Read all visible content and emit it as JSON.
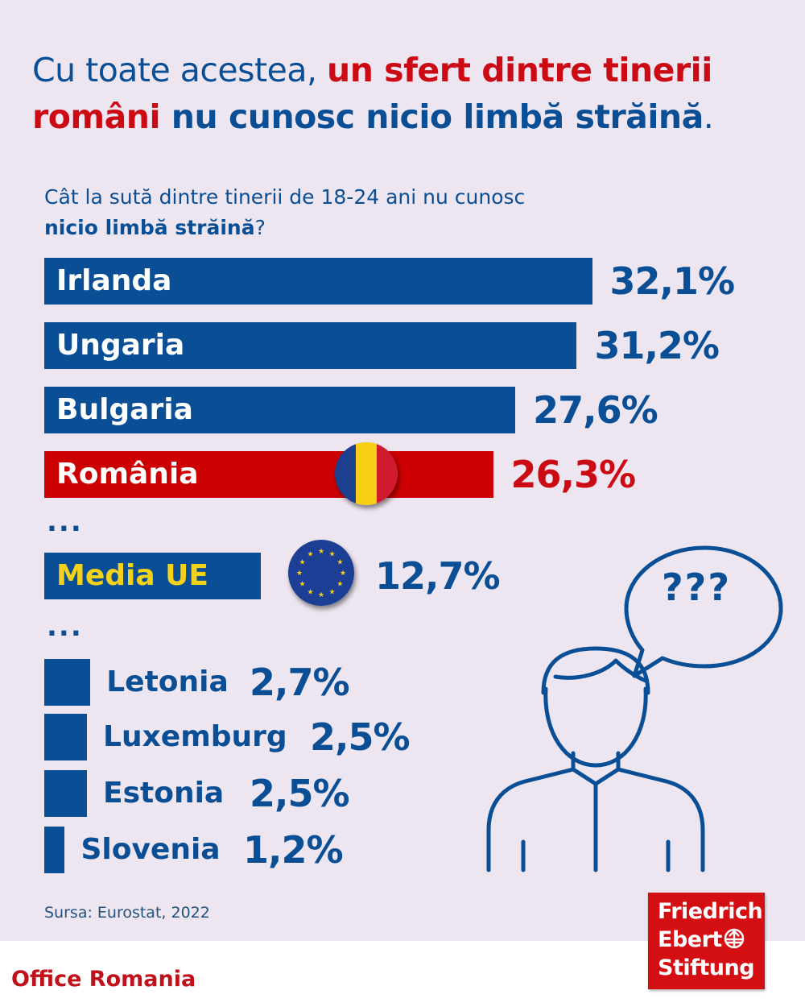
{
  "title": {
    "part1": "Cu toate acestea, ",
    "part2": "un sfert dintre tinerii români",
    "part3": " nu cunosc nicio limbă străină",
    "part4": "."
  },
  "subtitle": {
    "line1": "Cât la sută dintre tinerii de 18-24 ani nu cunosc",
    "line2": "nicio limbă străină",
    "line2_end": "?"
  },
  "chart_data": {
    "type": "bar",
    "orientation": "horizontal",
    "title": "Cât la sută dintre tinerii de 18-24 ani nu cunosc nicio limbă străină?",
    "unit": "%",
    "categories": [
      "Irlanda",
      "Ungaria",
      "Bulgaria",
      "România",
      "Media UE",
      "Letonia",
      "Luxemburg",
      "Estonia",
      "Slovenia"
    ],
    "values": [
      32.1,
      31.2,
      27.6,
      26.3,
      12.7,
      2.7,
      2.5,
      2.5,
      1.2
    ],
    "value_labels": [
      "32,1%",
      "31,2%",
      "27,6%",
      "26,3%",
      "12,7%",
      "2,7%",
      "2,5%",
      "2,5%",
      "1,2%"
    ],
    "highlight": "România",
    "ellipsis": "..."
  },
  "speech_bubble": "???",
  "source": "Sursa: Eurostat, 2022",
  "footer": {
    "office": "Office Romania",
    "logo": [
      "Friedrich",
      "Ebert",
      "Stiftung"
    ]
  },
  "colors": {
    "blue": "#0a4f96",
    "red": "#cc0000",
    "background": "#ede5ef",
    "eu_yellow": "#f4d21a"
  }
}
